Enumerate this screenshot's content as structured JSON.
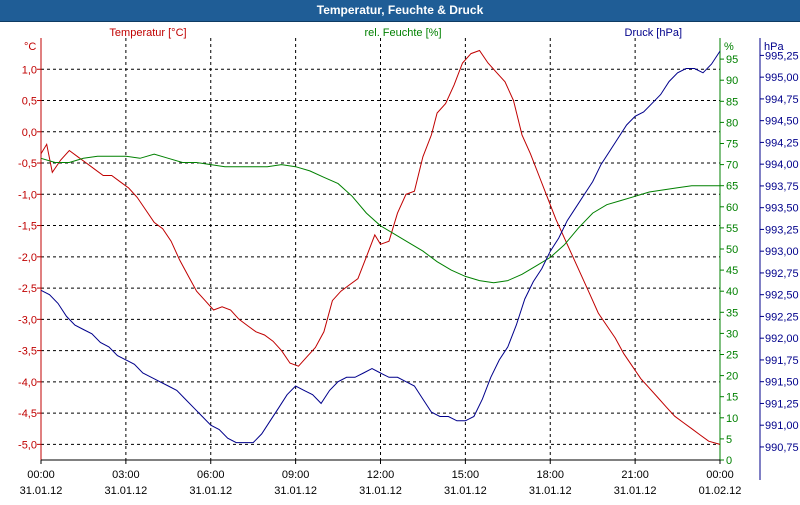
{
  "window": {
    "title": "Temperatur, Feuchte & Druck"
  },
  "colors": {
    "temperature": "#c00000",
    "humidity": "#008000",
    "pressure": "#00008b",
    "grid": "#000000",
    "text": "#000000"
  },
  "chart_data": {
    "type": "line",
    "title": "Temperatur, Feuchte & Druck",
    "x_ticks": [
      {
        "t": 0,
        "time": "00:00",
        "date": "31.01.12"
      },
      {
        "t": 3,
        "time": "03:00",
        "date": "31.01.12"
      },
      {
        "t": 6,
        "time": "06:00",
        "date": "31.01.12"
      },
      {
        "t": 9,
        "time": "09:00",
        "date": "31.01.12"
      },
      {
        "t": 12,
        "time": "12:00",
        "date": "31.01.12"
      },
      {
        "t": 15,
        "time": "15:00",
        "date": "31.01.12"
      },
      {
        "t": 18,
        "time": "18:00",
        "date": "31.01.12"
      },
      {
        "t": 21,
        "time": "21:00",
        "date": "31.01.12"
      },
      {
        "t": 24,
        "time": "00:00",
        "date": "01.02.12"
      }
    ],
    "xlim": [
      0,
      24
    ],
    "axes": {
      "temperature": {
        "label": "Temperatur [°C]",
        "unit": "°C",
        "range": [
          -5.25,
          1.5
        ],
        "ticks": [
          "1,0",
          "0,5",
          "0,0",
          "-0,5",
          "-1,0",
          "-1,5",
          "-2,0",
          "-2,5",
          "-3,0",
          "-3,5",
          "-4,0",
          "-4,5",
          "-5,0"
        ],
        "tick_values": [
          1.0,
          0.5,
          0.0,
          -0.5,
          -1.0,
          -1.5,
          -2.0,
          -2.5,
          -3.0,
          -3.5,
          -4.0,
          -4.5,
          -5.0
        ]
      },
      "humidity": {
        "label": "rel. Feuchte [%]",
        "unit": "%",
        "range": [
          0,
          100
        ],
        "ticks": [
          "95",
          "90",
          "85",
          "80",
          "75",
          "70",
          "65",
          "60",
          "55",
          "50",
          "45",
          "40",
          "35",
          "30",
          "25",
          "20",
          "15",
          "10",
          "5",
          "0"
        ],
        "tick_values": [
          95,
          90,
          85,
          80,
          75,
          70,
          65,
          60,
          55,
          50,
          45,
          40,
          35,
          30,
          25,
          20,
          15,
          10,
          5,
          0
        ]
      },
      "pressure": {
        "label": "Druck [hPa]",
        "unit": "hPa",
        "range": [
          990.6,
          995.45
        ],
        "ticks": [
          "995,25",
          "995,00",
          "994,75",
          "994,50",
          "994,25",
          "994,00",
          "993,75",
          "993,50",
          "993,25",
          "993,00",
          "992,75",
          "992,50",
          "992,25",
          "992,00",
          "991,75",
          "991,50",
          "991,25",
          "991,00",
          "990,75"
        ],
        "tick_values": [
          995.25,
          995.0,
          994.75,
          994.5,
          994.25,
          994.0,
          993.75,
          993.5,
          993.25,
          993.0,
          992.75,
          992.5,
          992.25,
          992.0,
          991.75,
          991.5,
          991.25,
          991.0,
          990.75
        ]
      }
    },
    "series": [
      {
        "name": "Temperatur [°C]",
        "axis": "temperature",
        "points": [
          [
            0,
            -0.35
          ],
          [
            0.2,
            -0.2
          ],
          [
            0.4,
            -0.65
          ],
          [
            0.7,
            -0.45
          ],
          [
            1.0,
            -0.3
          ],
          [
            1.3,
            -0.4
          ],
          [
            1.6,
            -0.5
          ],
          [
            1.9,
            -0.6
          ],
          [
            2.2,
            -0.7
          ],
          [
            2.5,
            -0.7
          ],
          [
            2.8,
            -0.8
          ],
          [
            3.1,
            -0.9
          ],
          [
            3.4,
            -1.05
          ],
          [
            3.7,
            -1.25
          ],
          [
            4.0,
            -1.45
          ],
          [
            4.3,
            -1.55
          ],
          [
            4.6,
            -1.75
          ],
          [
            4.9,
            -2.05
          ],
          [
            5.2,
            -2.3
          ],
          [
            5.5,
            -2.55
          ],
          [
            5.8,
            -2.7
          ],
          [
            6.1,
            -2.85
          ],
          [
            6.4,
            -2.8
          ],
          [
            6.7,
            -2.85
          ],
          [
            7.0,
            -3.0
          ],
          [
            7.3,
            -3.1
          ],
          [
            7.6,
            -3.2
          ],
          [
            7.9,
            -3.25
          ],
          [
            8.2,
            -3.35
          ],
          [
            8.5,
            -3.5
          ],
          [
            8.8,
            -3.7
          ],
          [
            9.1,
            -3.75
          ],
          [
            9.4,
            -3.6
          ],
          [
            9.7,
            -3.45
          ],
          [
            10.0,
            -3.2
          ],
          [
            10.3,
            -2.7
          ],
          [
            10.6,
            -2.55
          ],
          [
            10.9,
            -2.45
          ],
          [
            11.2,
            -2.35
          ],
          [
            11.5,
            -2.0
          ],
          [
            11.8,
            -1.65
          ],
          [
            12.0,
            -1.8
          ],
          [
            12.3,
            -1.75
          ],
          [
            12.6,
            -1.3
          ],
          [
            12.9,
            -1.0
          ],
          [
            13.2,
            -0.95
          ],
          [
            13.5,
            -0.4
          ],
          [
            13.8,
            -0.05
          ],
          [
            14.0,
            0.3
          ],
          [
            14.3,
            0.45
          ],
          [
            14.6,
            0.75
          ],
          [
            14.9,
            1.1
          ],
          [
            15.2,
            1.25
          ],
          [
            15.5,
            1.3
          ],
          [
            15.8,
            1.1
          ],
          [
            16.1,
            0.95
          ],
          [
            16.4,
            0.8
          ],
          [
            16.7,
            0.5
          ],
          [
            17.0,
            -0.05
          ],
          [
            17.3,
            -0.35
          ],
          [
            17.6,
            -0.7
          ],
          [
            17.9,
            -1.05
          ],
          [
            18.2,
            -1.4
          ],
          [
            18.5,
            -1.7
          ],
          [
            18.8,
            -2.0
          ],
          [
            19.1,
            -2.3
          ],
          [
            19.4,
            -2.6
          ],
          [
            19.7,
            -2.9
          ],
          [
            20.0,
            -3.1
          ],
          [
            20.3,
            -3.3
          ],
          [
            20.6,
            -3.55
          ],
          [
            20.9,
            -3.75
          ],
          [
            21.2,
            -3.95
          ],
          [
            21.5,
            -4.1
          ],
          [
            21.8,
            -4.25
          ],
          [
            22.1,
            -4.4
          ],
          [
            22.4,
            -4.55
          ],
          [
            22.7,
            -4.65
          ],
          [
            23.0,
            -4.75
          ],
          [
            23.3,
            -4.85
          ],
          [
            23.6,
            -4.95
          ],
          [
            24.0,
            -5.0
          ]
        ]
      },
      {
        "name": "rel. Feuchte [%]",
        "axis": "humidity",
        "points": [
          [
            0,
            71.5
          ],
          [
            0.5,
            70.5
          ],
          [
            1.0,
            70.5
          ],
          [
            1.5,
            71.5
          ],
          [
            2.0,
            72
          ],
          [
            2.5,
            72
          ],
          [
            3.0,
            72
          ],
          [
            3.5,
            71.5
          ],
          [
            4.0,
            72.5
          ],
          [
            4.5,
            71.5
          ],
          [
            5.0,
            70.5
          ],
          [
            5.5,
            70.5
          ],
          [
            6.0,
            70
          ],
          [
            6.5,
            69.5
          ],
          [
            7.0,
            69.5
          ],
          [
            7.5,
            69.5
          ],
          [
            8.0,
            69.5
          ],
          [
            8.5,
            70
          ],
          [
            9.0,
            69.5
          ],
          [
            9.5,
            68.5
          ],
          [
            10.0,
            67
          ],
          [
            10.5,
            65.5
          ],
          [
            11.0,
            62.5
          ],
          [
            11.5,
            58.5
          ],
          [
            12.0,
            55.5
          ],
          [
            12.5,
            53.5
          ],
          [
            13.0,
            51.5
          ],
          [
            13.5,
            49.5
          ],
          [
            14.0,
            47
          ],
          [
            14.5,
            45
          ],
          [
            15.0,
            43.5
          ],
          [
            15.5,
            42.5
          ],
          [
            16.0,
            42
          ],
          [
            16.5,
            42.5
          ],
          [
            17.0,
            44
          ],
          [
            17.5,
            46
          ],
          [
            18.0,
            48
          ],
          [
            18.5,
            51
          ],
          [
            19.0,
            55
          ],
          [
            19.5,
            58.5
          ],
          [
            20.0,
            60.5
          ],
          [
            20.5,
            61.5
          ],
          [
            21.0,
            62.5
          ],
          [
            21.5,
            63.5
          ],
          [
            22.0,
            64
          ],
          [
            22.5,
            64.5
          ],
          [
            23.0,
            65
          ],
          [
            23.5,
            65
          ],
          [
            24.0,
            65
          ]
        ]
      },
      {
        "name": "Druck [hPa]",
        "axis": "pressure",
        "points": [
          [
            0,
            992.55
          ],
          [
            0.3,
            992.5
          ],
          [
            0.6,
            992.4
          ],
          [
            0.9,
            992.25
          ],
          [
            1.2,
            992.15
          ],
          [
            1.5,
            992.1
          ],
          [
            1.8,
            992.05
          ],
          [
            2.1,
            991.95
          ],
          [
            2.4,
            991.9
          ],
          [
            2.7,
            991.8
          ],
          [
            3.0,
            991.75
          ],
          [
            3.3,
            991.7
          ],
          [
            3.6,
            991.6
          ],
          [
            3.9,
            991.55
          ],
          [
            4.2,
            991.5
          ],
          [
            4.5,
            991.45
          ],
          [
            4.8,
            991.4
          ],
          [
            5.1,
            991.3
          ],
          [
            5.4,
            991.2
          ],
          [
            5.7,
            991.1
          ],
          [
            6.0,
            991.0
          ],
          [
            6.3,
            990.95
          ],
          [
            6.6,
            990.85
          ],
          [
            6.9,
            990.8
          ],
          [
            7.2,
            990.8
          ],
          [
            7.5,
            990.8
          ],
          [
            7.8,
            990.9
          ],
          [
            8.1,
            991.05
          ],
          [
            8.4,
            991.2
          ],
          [
            8.7,
            991.35
          ],
          [
            9.0,
            991.45
          ],
          [
            9.3,
            991.4
          ],
          [
            9.6,
            991.35
          ],
          [
            9.9,
            991.25
          ],
          [
            10.2,
            991.4
          ],
          [
            10.5,
            991.5
          ],
          [
            10.8,
            991.55
          ],
          [
            11.1,
            991.55
          ],
          [
            11.4,
            991.6
          ],
          [
            11.7,
            991.65
          ],
          [
            12.0,
            991.6
          ],
          [
            12.3,
            991.55
          ],
          [
            12.6,
            991.55
          ],
          [
            12.9,
            991.5
          ],
          [
            13.2,
            991.45
          ],
          [
            13.5,
            991.3
          ],
          [
            13.8,
            991.15
          ],
          [
            14.1,
            991.1
          ],
          [
            14.4,
            991.1
          ],
          [
            14.7,
            991.05
          ],
          [
            15.0,
            991.05
          ],
          [
            15.3,
            991.1
          ],
          [
            15.6,
            991.3
          ],
          [
            15.9,
            991.55
          ],
          [
            16.2,
            991.75
          ],
          [
            16.5,
            991.9
          ],
          [
            16.8,
            992.15
          ],
          [
            17.1,
            992.45
          ],
          [
            17.4,
            992.65
          ],
          [
            17.7,
            992.8
          ],
          [
            18.0,
            993.0
          ],
          [
            18.3,
            993.15
          ],
          [
            18.6,
            993.35
          ],
          [
            18.9,
            993.5
          ],
          [
            19.2,
            993.65
          ],
          [
            19.5,
            993.8
          ],
          [
            19.8,
            994.0
          ],
          [
            20.1,
            994.15
          ],
          [
            20.4,
            994.3
          ],
          [
            20.7,
            994.45
          ],
          [
            21.0,
            994.55
          ],
          [
            21.3,
            994.6
          ],
          [
            21.6,
            994.7
          ],
          [
            21.9,
            994.8
          ],
          [
            22.2,
            994.95
          ],
          [
            22.5,
            995.05
          ],
          [
            22.8,
            995.1
          ],
          [
            23.1,
            995.1
          ],
          [
            23.4,
            995.05
          ],
          [
            23.7,
            995.15
          ],
          [
            24.0,
            995.3
          ]
        ]
      }
    ]
  }
}
